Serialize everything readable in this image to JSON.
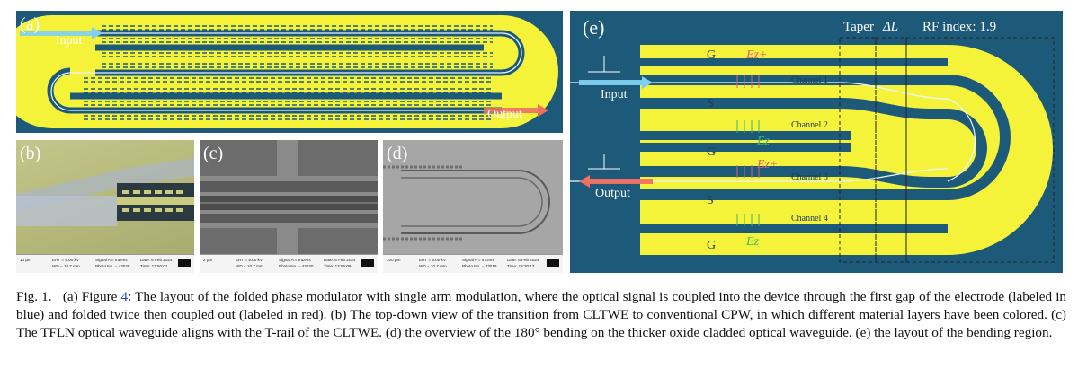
{
  "panels": {
    "a": {
      "label": "(a)",
      "input": "Input",
      "output": "Output"
    },
    "b": {
      "label": "(b)",
      "scale": "10 μm",
      "eht": "EHT = 5.00 kV",
      "wd": "WD = 10.7 mm",
      "signal": "Signal A = InLens",
      "photo": "Photo No. = 43028",
      "date": "Date: 6 Feb 2024",
      "time": "Time: 13:50:01"
    },
    "c": {
      "label": "(c)",
      "scale": "2 μm",
      "eht": "EHT = 5.00 kV",
      "wd": "WD = 10.7 mm",
      "signal": "Signal A = InLens",
      "photo": "Photo No. = 43030",
      "date": "Date: 6 Feb 2024",
      "time": "Time: 13:56:09"
    },
    "d": {
      "label": "(d)",
      "scale": "100 μm",
      "eht": "EHT = 5.00 kV",
      "wd": "WD = 10.7 mm",
      "signal": "Signal A = InLens",
      "photo": "Photo No. = 43019",
      "date": "Date: 6 Feb 2024",
      "time": "Time: 13:30:17"
    },
    "e": {
      "label": "(e)",
      "taper": "Taper",
      "delta_l": "ΔL",
      "rf_index": "RF index: 1.9",
      "input": "Input",
      "output": "Output",
      "g": "G",
      "s": "S",
      "ez_plus": "Ez+",
      "ez_minus": "Ez−",
      "ez": "Ez",
      "channel1": "Channel 1",
      "channel2": "Channel 2",
      "channel3": "Channel 3",
      "channel4": "Channel 4"
    }
  },
  "caption": {
    "fig": "Fig. 1.",
    "a_prefix": "(a) Figure ",
    "a_ref": "4",
    "rest": ": The layout of the folded phase modulator with single arm modulation, where the optical signal is coupled into the device through the first gap of the electrode (labeled in blue) and folded twice then coupled out (labeled in red). (b) The top-down view of the transition from CLTWE to conventional CPW, in which different material layers have been colored. (c) The TFLN optical waveguide aligns with the T-rail of the CLTWE. (d) the overview of the 180° bending on the thicker oxide cladded optical waveguide. (e) the layout of the bending region."
  },
  "colors": {
    "bg": "#1d5a7a",
    "metal": "#f5f23a",
    "light_in": "#7fd0f0",
    "light_out": "#f07060"
  }
}
